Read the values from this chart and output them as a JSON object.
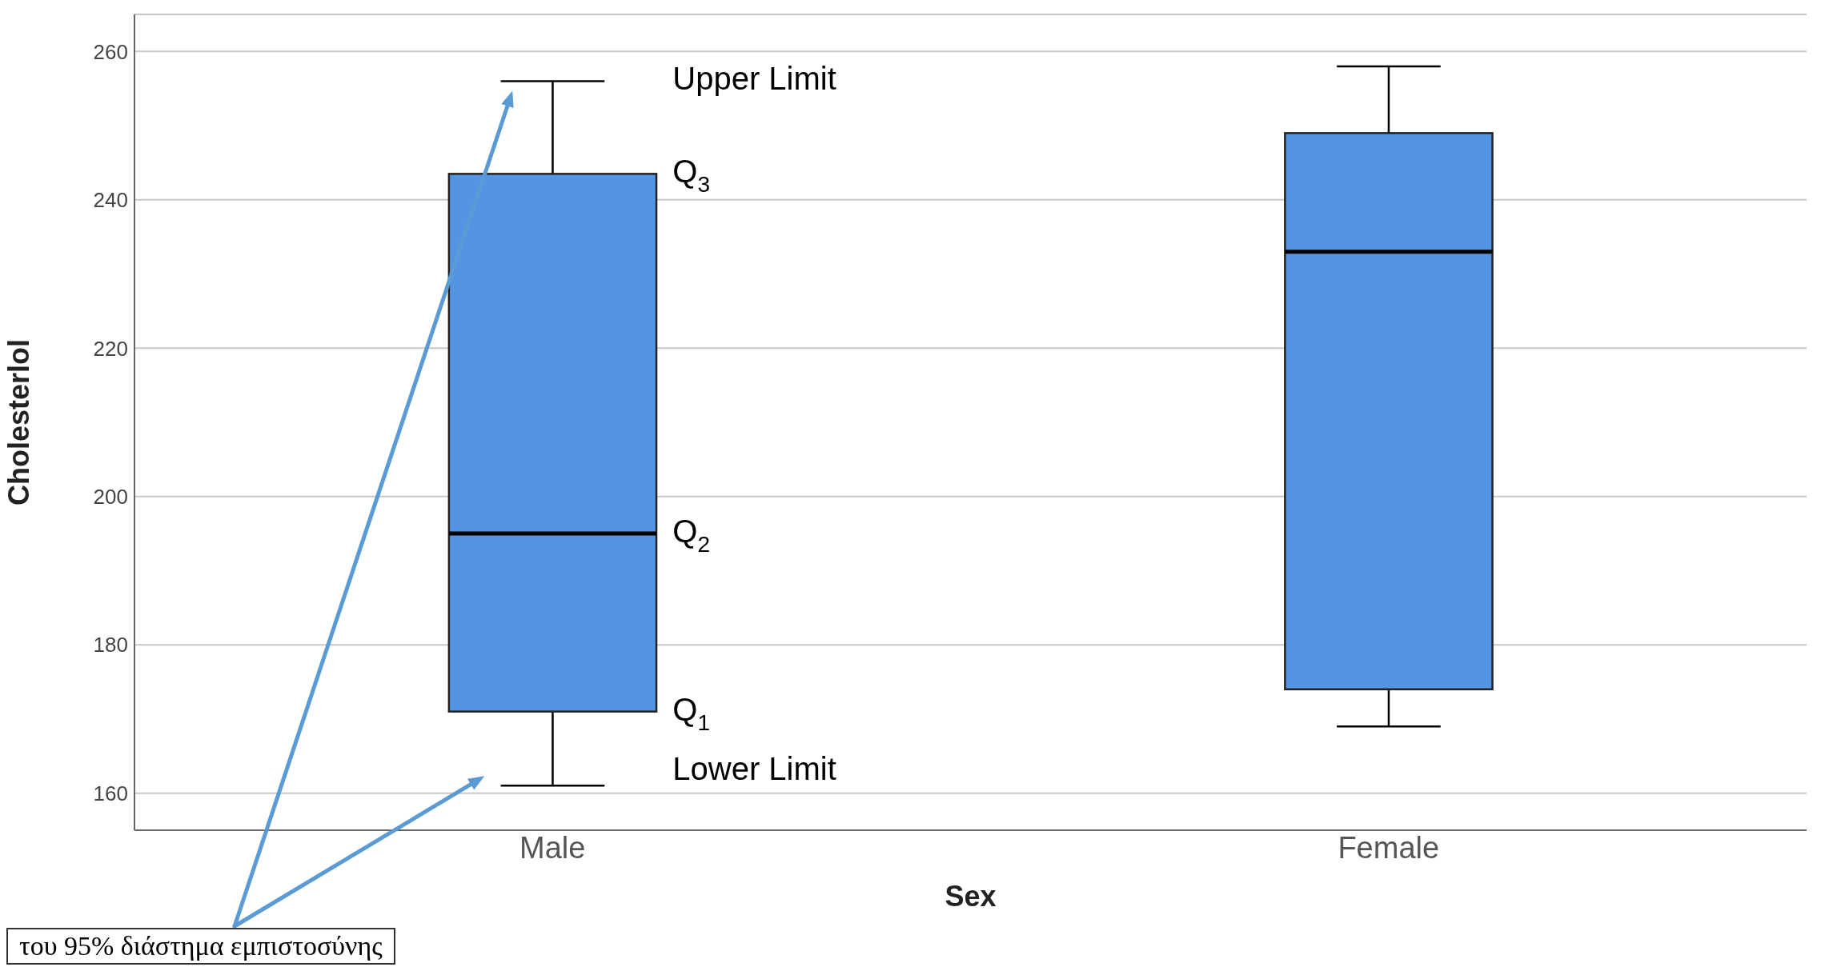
{
  "chart_data": {
    "type": "box",
    "xlabel": "Sex",
    "ylabel": "Cholesterlol",
    "categories": [
      "Male",
      "Female"
    ],
    "color": "#5495e3",
    "boxes": [
      {
        "low": 161,
        "q1": 171,
        "median": 195,
        "q3": 243.5,
        "high": 256
      },
      {
        "low": 169,
        "q1": 174,
        "median": 233,
        "q3": 249,
        "high": 258
      }
    ],
    "ylim": [
      155,
      265
    ],
    "yticks": [
      160,
      180,
      200,
      220,
      240,
      260
    ],
    "grid": "y",
    "annotations": [
      "Upper Limit",
      "Q$_{3}$",
      "Q$_{2}$",
      "Q$_{1}$",
      "Lower Limit",
      "του 95% διάστημα εμπιστοσύνης"
    ]
  }
}
